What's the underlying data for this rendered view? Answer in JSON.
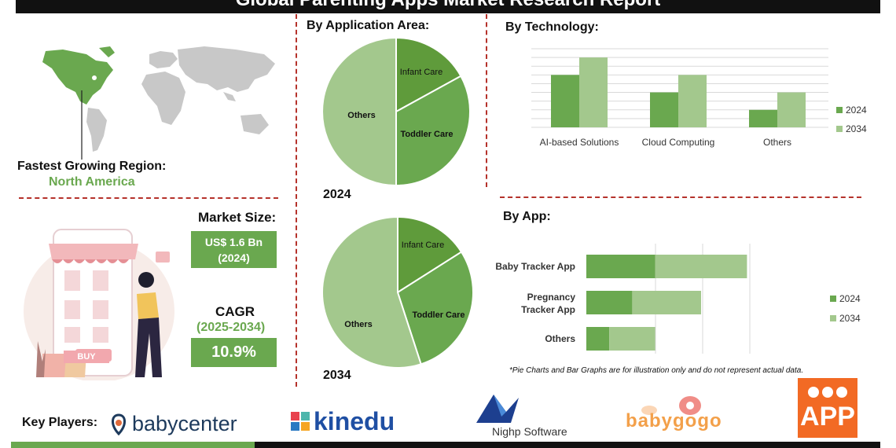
{
  "header": {
    "title": "Global Parenting Apps Market Research Report"
  },
  "region": {
    "label": "Fastest Growing Region:",
    "value": "North America"
  },
  "market_size": {
    "label": "Market Size:",
    "value": "US$ 1.6 Bn",
    "year": "(2024)"
  },
  "cagr": {
    "label": "CAGR",
    "period": "(2025-2034)",
    "value": "10.9%"
  },
  "illustration": {
    "buy_label": "BUY"
  },
  "sections": {
    "application": "By Application Area:",
    "technology": "By  Technology:",
    "app": "By App:"
  },
  "note": "*Pie Charts and Bar Graphs are for illustration only and do not represent actual data.",
  "key_players": {
    "label": "Key Players:",
    "logos": [
      "babycenter",
      "kinedu",
      "Nighp Software",
      "babygogo",
      "APP"
    ]
  },
  "colors": {
    "dark_green": "#5f9b3b",
    "mid_green": "#6aa84f",
    "light_green": "#a3c88d",
    "accent_red": "#b5322b"
  },
  "chart_data": [
    {
      "type": "pie",
      "year_label": "2024",
      "slices": [
        {
          "label": "Infant Care",
          "value": 17
        },
        {
          "label": "Toddler Care",
          "value": 33
        },
        {
          "label": "Others",
          "value": 50
        }
      ]
    },
    {
      "type": "pie",
      "year_label": "2034",
      "slices": [
        {
          "label": "Infant Care",
          "value": 16
        },
        {
          "label": "Toddler Care",
          "value": 29
        },
        {
          "label": "Others",
          "value": 55
        }
      ]
    },
    {
      "type": "bar",
      "categories": [
        "AI-based Solutions",
        "Cloud Computing",
        "Others"
      ],
      "series": [
        {
          "name": "2024",
          "values": [
            6,
            4,
            2
          ]
        },
        {
          "name": "2034",
          "values": [
            8,
            6,
            4
          ]
        }
      ],
      "ylim": [
        0,
        9
      ],
      "grid": true,
      "legend": "right"
    },
    {
      "type": "bar",
      "orientation": "horizontal",
      "stacked": true,
      "categories": [
        "Baby Tracker App",
        "Pregnancy Tracker App",
        "Others"
      ],
      "series": [
        {
          "name": "2024",
          "values": [
            3,
            2,
            1
          ]
        },
        {
          "name": "2034",
          "values": [
            4,
            3,
            2
          ]
        }
      ],
      "xlim": [
        0,
        8
      ],
      "legend": "right"
    }
  ]
}
